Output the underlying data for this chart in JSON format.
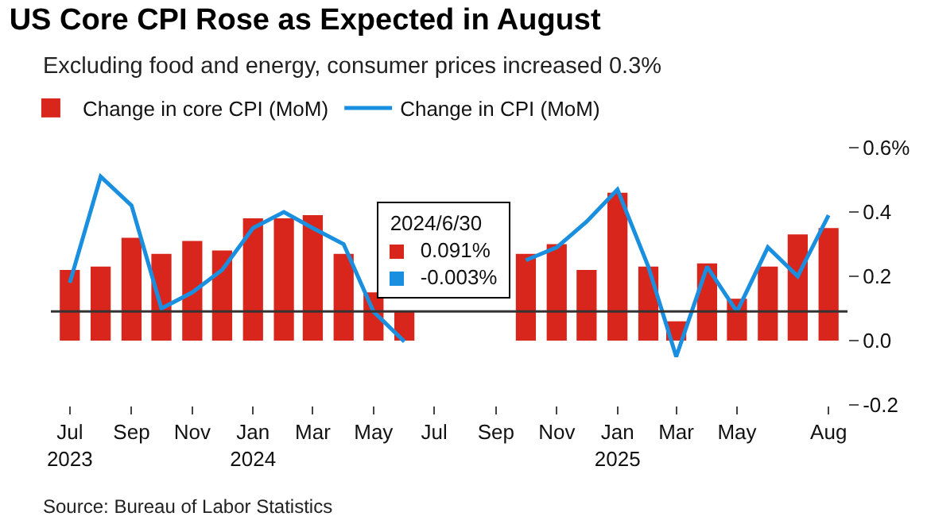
{
  "chart_data": {
    "type": "bar",
    "title": "US Core CPI Rose as Expected in August",
    "subtitle": "Excluding food and energy, consumer prices increased 0.3%",
    "x": [
      "2023-07",
      "2023-08",
      "2023-09",
      "2023-10",
      "2023-11",
      "2023-12",
      "2024-01",
      "2024-02",
      "2024-03",
      "2024-04",
      "2024-05",
      "2024-06",
      "2024-07",
      "2024-08",
      "2024-09",
      "2024-10",
      "2024-11",
      "2024-12",
      "2025-01",
      "2025-02",
      "2025-03",
      "2025-04",
      "2025-05",
      "2025-06",
      "2025-07",
      "2025-08"
    ],
    "series": [
      {
        "name": "Change in core CPI (MoM)",
        "color": "#d9261c",
        "values": [
          0.22,
          0.23,
          0.32,
          0.27,
          0.31,
          0.28,
          0.38,
          0.38,
          0.39,
          0.27,
          0.15,
          0.091,
          null,
          null,
          null,
          0.27,
          0.3,
          0.22,
          0.46,
          0.23,
          0.06,
          0.24,
          0.13,
          0.23,
          0.33,
          0.35
        ]
      },
      {
        "name": "Change in CPI (MoM)",
        "type": "line",
        "color": "#1a8fe0",
        "values": [
          0.18,
          0.51,
          0.42,
          0.1,
          0.15,
          0.22,
          0.35,
          0.4,
          0.35,
          0.3,
          0.09,
          -0.003,
          null,
          null,
          null,
          0.25,
          0.29,
          0.37,
          0.47,
          0.23,
          -0.05,
          0.23,
          0.09,
          0.29,
          0.2,
          0.39
        ]
      }
    ],
    "xlim": [
      "2023-06-12",
      "2025-08-20"
    ],
    "xticks": [
      {
        "value": "2023-07",
        "label": "Jul\n2023"
      },
      {
        "value": "2023-09",
        "label": "Sep"
      },
      {
        "value": "2023-11",
        "label": "Nov"
      },
      {
        "value": "2024-01",
        "label": "Jan\n2024"
      },
      {
        "value": "2024-03",
        "label": "Mar"
      },
      {
        "value": "2024-05",
        "label": "May"
      },
      {
        "value": "2024-07",
        "label": "Jul"
      },
      {
        "value": "2024-09",
        "label": "Sep"
      },
      {
        "value": "2024-11",
        "label": "Nov"
      },
      {
        "value": "2025-01",
        "label": "Jan\n2025"
      },
      {
        "value": "2025-03",
        "label": "Mar"
      },
      {
        "value": "2025-05",
        "label": "May"
      },
      {
        "value": "2025-08",
        "label": "Aug"
      }
    ],
    "ylim": [
      -0.2,
      0.6
    ],
    "yticks": [
      {
        "value": -0.2,
        "label": "-0.2"
      },
      {
        "value": 0,
        "label": "0.0"
      },
      {
        "value": 0.2,
        "label": "0.2"
      },
      {
        "value": 0.4,
        "label": "0.4"
      },
      {
        "value": 0.6,
        "label": "0.6%"
      }
    ],
    "ref_lines": [
      {
        "axis": "y",
        "value": 0.091,
        "color": "#333333"
      }
    ],
    "legend": "top left",
    "annotations": [
      {
        "text": "2024/6/30\n0.091%\n-0.003%",
        "x": "2024-06",
        "y": 0.091
      },
      "Source: Bureau of Labor Statistics"
    ]
  }
}
